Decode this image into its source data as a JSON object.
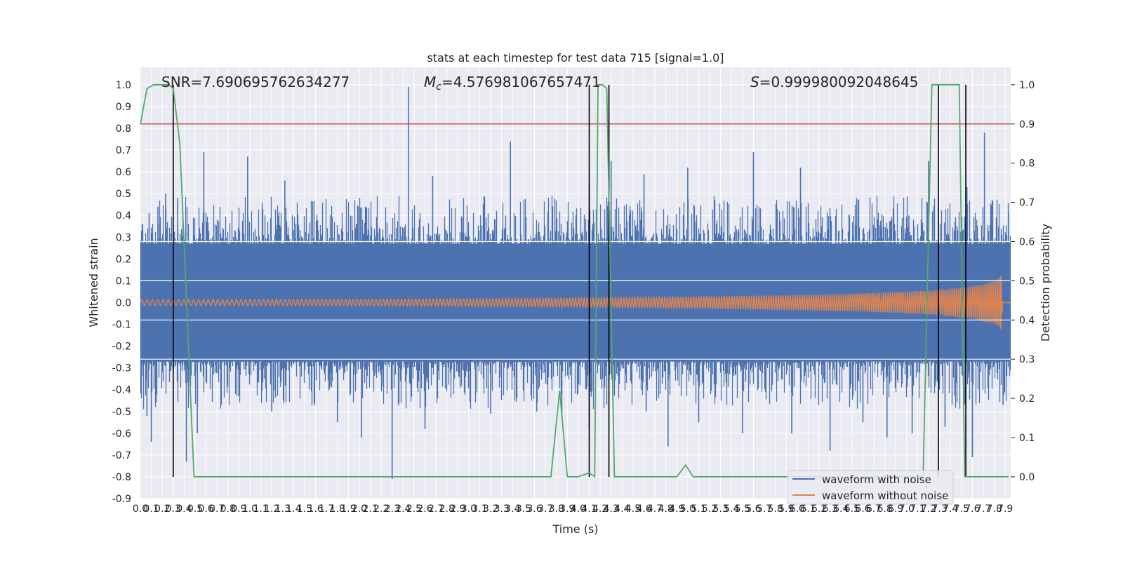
{
  "chart_data": {
    "type": "line",
    "title": "stats at each timestep for test data 715 [signal=1.0]",
    "xlabel": "Time (s)",
    "ylabel": "Whitened strain",
    "ylabel_right": "Detection probability",
    "xlim": [
      0.0,
      7.95
    ],
    "ylim": [
      -0.9,
      1.08
    ],
    "ylim_right": [
      0.0,
      1.0
    ],
    "x_ticks": [
      "0.0",
      "0.1",
      "0.2",
      "0.3",
      "0.4",
      "0.5",
      "0.6",
      "0.7",
      "0.8",
      "0.9",
      "1.0",
      "1.1",
      "1.2",
      "1.3",
      "1.4",
      "1.5",
      "1.6",
      "1.7",
      "1.8",
      "1.9",
      "2.0",
      "2.1",
      "2.2",
      "2.3",
      "2.4",
      "2.5",
      "2.6",
      "2.7",
      "2.8",
      "2.9",
      "3.0",
      "3.1",
      "3.2",
      "3.3",
      "3.4",
      "3.5",
      "3.6",
      "3.7",
      "3.8",
      "3.9",
      "4.0",
      "4.1",
      "4.2",
      "4.3",
      "4.4",
      "4.5",
      "4.6",
      "4.7",
      "4.8",
      "4.9",
      "5.0",
      "5.1",
      "5.2",
      "5.3",
      "5.4",
      "5.5",
      "5.6",
      "5.7",
      "5.8",
      "5.9",
      "6.0",
      "6.1",
      "6.2",
      "6.3",
      "6.4",
      "6.5",
      "6.6",
      "6.7",
      "6.8",
      "6.9",
      "7.0",
      "7.1",
      "7.2",
      "7.3",
      "7.4",
      "7.5",
      "7.6",
      "7.7",
      "7.8",
      "7.9"
    ],
    "y_ticks_left": [
      "1.0",
      "0.9",
      "0.8",
      "0.7",
      "0.6",
      "0.5",
      "0.4",
      "0.3",
      "0.2",
      "0.1",
      "0.0",
      "-0.1",
      "-0.2",
      "-0.3",
      "-0.4",
      "-0.5",
      "-0.6",
      "-0.7",
      "-0.8",
      "-0.9"
    ],
    "y_ticks_right": [
      "1.0",
      "0.9",
      "0.8",
      "0.7",
      "0.6",
      "0.5",
      "0.4",
      "0.3",
      "0.2",
      "0.1",
      "0.0"
    ],
    "grid": true,
    "legend_position": "bottom-right",
    "annotations": {
      "snr": "SNR=7.690695762634277",
      "mc_symbol": "M",
      "mc_sub": "c",
      "mc_value": "=4.576981067657471",
      "s_symbol": "S",
      "s_value": "=0.999980092048645"
    },
    "series": [
      {
        "name": "waveform with noise",
        "color": "#4c72b0",
        "envelope_upper": 0.27,
        "envelope_lower": -0.27,
        "spikes": [
          {
            "x": 0.02,
            "y": 0.36
          },
          {
            "x": 0.08,
            "y": 0.41
          },
          {
            "x": 0.16,
            "y": 0.44
          },
          {
            "x": 0.23,
            "y": 0.5
          },
          {
            "x": 0.34,
            "y": 0.48
          },
          {
            "x": 0.58,
            "y": 0.69
          },
          {
            "x": 0.98,
            "y": 0.67
          },
          {
            "x": 1.32,
            "y": 0.56
          },
          {
            "x": 2.45,
            "y": 0.99
          },
          {
            "x": 2.67,
            "y": 0.58
          },
          {
            "x": 3.38,
            "y": 0.74
          },
          {
            "x": 4.1,
            "y": 0.55
          },
          {
            "x": 4.3,
            "y": 0.65
          },
          {
            "x": 4.6,
            "y": 0.59
          },
          {
            "x": 5.0,
            "y": 0.62
          },
          {
            "x": 5.6,
            "y": 0.69
          },
          {
            "x": 6.03,
            "y": 0.62
          },
          {
            "x": 7.02,
            "y": 0.4
          },
          {
            "x": 7.2,
            "y": 0.65
          },
          {
            "x": 7.55,
            "y": 0.53
          },
          {
            "x": 7.71,
            "y": 0.78
          },
          {
            "x": 7.93,
            "y": 0.41
          },
          {
            "x": 0.06,
            "y": -0.52
          },
          {
            "x": 0.1,
            "y": -0.64
          },
          {
            "x": 0.42,
            "y": -0.73
          },
          {
            "x": 0.52,
            "y": -0.6
          },
          {
            "x": 0.9,
            "y": -0.43
          },
          {
            "x": 1.2,
            "y": -0.5
          },
          {
            "x": 1.8,
            "y": -0.55
          },
          {
            "x": 2.02,
            "y": -0.62
          },
          {
            "x": 2.3,
            "y": -0.81
          },
          {
            "x": 2.6,
            "y": -0.58
          },
          {
            "x": 3.2,
            "y": -0.51
          },
          {
            "x": 3.62,
            "y": -0.5
          },
          {
            "x": 3.85,
            "y": -0.53
          },
          {
            "x": 4.1,
            "y": -0.58
          },
          {
            "x": 4.62,
            "y": -0.5
          },
          {
            "x": 4.82,
            "y": -0.66
          },
          {
            "x": 5.1,
            "y": -0.55
          },
          {
            "x": 5.5,
            "y": -0.6
          },
          {
            "x": 5.95,
            "y": -0.6
          },
          {
            "x": 6.3,
            "y": -0.68
          },
          {
            "x": 6.6,
            "y": -0.55
          },
          {
            "x": 6.82,
            "y": -0.62
          },
          {
            "x": 7.05,
            "y": -0.6
          },
          {
            "x": 7.35,
            "y": -0.57
          },
          {
            "x": 7.6,
            "y": -0.71
          },
          {
            "x": 7.88,
            "y": -0.47
          }
        ]
      },
      {
        "name": "waveform without noise",
        "color": "#dd8452",
        "amplitude": [
          [
            0.0,
            0.013
          ],
          [
            2.0,
            0.015
          ],
          [
            4.0,
            0.02
          ],
          [
            5.5,
            0.03
          ],
          [
            6.5,
            0.04
          ],
          [
            7.2,
            0.055
          ],
          [
            7.6,
            0.075
          ],
          [
            7.8,
            0.1
          ],
          [
            7.86,
            0.12
          ],
          [
            7.88,
            0.0
          ],
          [
            7.95,
            0.0
          ]
        ],
        "peak": [
          7.86,
          0.12
        ]
      },
      {
        "color": "#55a868",
        "axis": "right",
        "x": [
          0.0,
          0.06,
          0.12,
          0.26,
          0.3,
          0.36,
          0.49,
          0.7,
          3.75,
          3.83,
          3.9,
          4.0,
          4.1,
          4.15,
          4.18,
          4.22,
          4.26,
          4.33,
          4.37,
          4.43,
          4.9,
          4.98,
          5.05,
          7.15,
          7.23,
          7.27,
          7.48,
          7.53,
          7.93
        ],
        "y": [
          0.9,
          0.99,
          1.0,
          1.0,
          0.99,
          0.85,
          0.0,
          0.0,
          0.0,
          0.22,
          0.0,
          0.0,
          0.01,
          0.0,
          1.0,
          1.0,
          0.99,
          0.0,
          0.0,
          0.0,
          0.0,
          0.03,
          0.0,
          0.0,
          1.0,
          1.0,
          1.0,
          0.0,
          0.0
        ]
      }
    ],
    "threshold": {
      "axis": "right",
      "y": 0.9,
      "color": "#c44e52"
    },
    "vertical_markers": [
      {
        "x": 0.3,
        "y_top": 1.0
      },
      {
        "x": 4.1,
        "y_top": 1.0
      },
      {
        "x": 4.28,
        "y_top": 1.0
      },
      {
        "x": 7.29,
        "y_top": 1.0
      },
      {
        "x": 7.54,
        "y_top": 1.0
      }
    ],
    "marker_bottom": -0.8
  }
}
